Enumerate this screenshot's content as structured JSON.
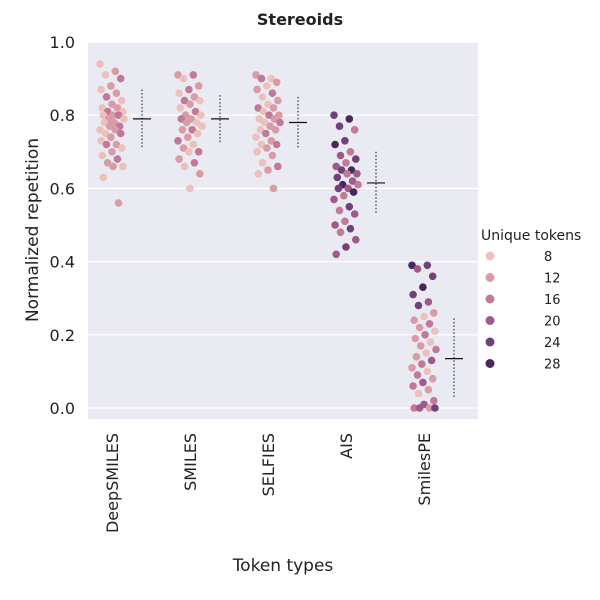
{
  "chart_data": {
    "type": "scatter",
    "title": "Stereoids",
    "xlabel": "Token types",
    "ylabel": "Normalized repetition",
    "categories": [
      "DeepSMILES",
      "SMILES",
      "SELFIES",
      "AIS",
      "SmilesPE"
    ],
    "ylim": [
      -0.03,
      1.0
    ],
    "yticks": [
      "0.0",
      "0.2",
      "0.4",
      "0.6",
      "0.8",
      "1.0"
    ],
    "grid": true,
    "legend": {
      "title": "Unique tokens",
      "placement": "right",
      "entries": [
        {
          "label": "8",
          "color": "#ecc0bb"
        },
        {
          "label": "12",
          "color": "#d99ba6"
        },
        {
          "label": "16",
          "color": "#c07a98"
        },
        {
          "label": "20",
          "color": "#9f5a8b"
        },
        {
          "label": "24",
          "color": "#72407a"
        },
        {
          "label": "28",
          "color": "#48285a"
        }
      ]
    },
    "summary": [
      {
        "category": "DeepSMILES",
        "mean": 0.79,
        "std": 0.08
      },
      {
        "category": "SMILES",
        "mean": 0.79,
        "std": 0.065
      },
      {
        "category": "SELFIES",
        "mean": 0.78,
        "std": 0.07
      },
      {
        "category": "AIS",
        "mean": 0.615,
        "std": 0.085
      },
      {
        "category": "SmilesPE",
        "mean": 0.135,
        "std": 0.11
      }
    ],
    "points": {
      "DeepSMILES": [
        [
          0.94,
          8
        ],
        [
          0.92,
          12
        ],
        [
          0.91,
          8
        ],
        [
          0.9,
          16
        ],
        [
          0.88,
          12
        ],
        [
          0.87,
          8
        ],
        [
          0.86,
          12
        ],
        [
          0.85,
          16
        ],
        [
          0.84,
          8
        ],
        [
          0.83,
          12
        ],
        [
          0.82,
          8
        ],
        [
          0.82,
          12
        ],
        [
          0.81,
          16
        ],
        [
          0.81,
          8
        ],
        [
          0.8,
          12
        ],
        [
          0.8,
          8
        ],
        [
          0.8,
          16
        ],
        [
          0.79,
          12
        ],
        [
          0.79,
          8
        ],
        [
          0.78,
          12
        ],
        [
          0.78,
          8
        ],
        [
          0.77,
          16
        ],
        [
          0.77,
          12
        ],
        [
          0.76,
          8
        ],
        [
          0.76,
          12
        ],
        [
          0.75,
          8
        ],
        [
          0.75,
          16
        ],
        [
          0.74,
          12
        ],
        [
          0.73,
          8
        ],
        [
          0.72,
          12
        ],
        [
          0.72,
          16
        ],
        [
          0.71,
          8
        ],
        [
          0.7,
          12
        ],
        [
          0.69,
          8
        ],
        [
          0.68,
          16
        ],
        [
          0.67,
          12
        ],
        [
          0.66,
          8
        ],
        [
          0.66,
          12
        ],
        [
          0.63,
          8
        ],
        [
          0.56,
          12
        ]
      ],
      "SMILES": [
        [
          0.91,
          12
        ],
        [
          0.91,
          16
        ],
        [
          0.9,
          8
        ],
        [
          0.88,
          12
        ],
        [
          0.87,
          16
        ],
        [
          0.86,
          8
        ],
        [
          0.85,
          12
        ],
        [
          0.84,
          16
        ],
        [
          0.84,
          8
        ],
        [
          0.83,
          12
        ],
        [
          0.82,
          8
        ],
        [
          0.81,
          16
        ],
        [
          0.8,
          12
        ],
        [
          0.8,
          8
        ],
        [
          0.79,
          12
        ],
        [
          0.79,
          16
        ],
        [
          0.78,
          8
        ],
        [
          0.78,
          12
        ],
        [
          0.77,
          8
        ],
        [
          0.76,
          16
        ],
        [
          0.76,
          12
        ],
        [
          0.75,
          8
        ],
        [
          0.74,
          12
        ],
        [
          0.73,
          16
        ],
        [
          0.72,
          8
        ],
        [
          0.71,
          12
        ],
        [
          0.7,
          16
        ],
        [
          0.7,
          8
        ],
        [
          0.68,
          12
        ],
        [
          0.67,
          16
        ],
        [
          0.66,
          8
        ],
        [
          0.64,
          12
        ],
        [
          0.6,
          8
        ]
      ],
      "SELFIES": [
        [
          0.91,
          12
        ],
        [
          0.9,
          8
        ],
        [
          0.9,
          16
        ],
        [
          0.89,
          12
        ],
        [
          0.88,
          8
        ],
        [
          0.87,
          12
        ],
        [
          0.86,
          16
        ],
        [
          0.85,
          8
        ],
        [
          0.84,
          12
        ],
        [
          0.83,
          8
        ],
        [
          0.82,
          16
        ],
        [
          0.82,
          12
        ],
        [
          0.81,
          8
        ],
        [
          0.8,
          12
        ],
        [
          0.8,
          16
        ],
        [
          0.79,
          8
        ],
        [
          0.79,
          12
        ],
        [
          0.78,
          8
        ],
        [
          0.78,
          16
        ],
        [
          0.77,
          12
        ],
        [
          0.76,
          8
        ],
        [
          0.76,
          12
        ],
        [
          0.75,
          16
        ],
        [
          0.74,
          8
        ],
        [
          0.73,
          12
        ],
        [
          0.72,
          8
        ],
        [
          0.72,
          16
        ],
        [
          0.71,
          12
        ],
        [
          0.7,
          8
        ],
        [
          0.69,
          12
        ],
        [
          0.67,
          8
        ],
        [
          0.66,
          16
        ],
        [
          0.65,
          12
        ],
        [
          0.64,
          8
        ],
        [
          0.6,
          12
        ]
      ],
      "AIS": [
        [
          0.8,
          24
        ],
        [
          0.79,
          28
        ],
        [
          0.77,
          24
        ],
        [
          0.76,
          16
        ],
        [
          0.73,
          24
        ],
        [
          0.72,
          28
        ],
        [
          0.7,
          16
        ],
        [
          0.69,
          20
        ],
        [
          0.68,
          24
        ],
        [
          0.67,
          16
        ],
        [
          0.66,
          20
        ],
        [
          0.65,
          28
        ],
        [
          0.65,
          24
        ],
        [
          0.64,
          20
        ],
        [
          0.64,
          16
        ],
        [
          0.63,
          24
        ],
        [
          0.62,
          20
        ],
        [
          0.61,
          28
        ],
        [
          0.61,
          16
        ],
        [
          0.6,
          20
        ],
        [
          0.6,
          24
        ],
        [
          0.59,
          28
        ],
        [
          0.58,
          16
        ],
        [
          0.57,
          20
        ],
        [
          0.55,
          24
        ],
        [
          0.54,
          16
        ],
        [
          0.53,
          20
        ],
        [
          0.51,
          16
        ],
        [
          0.5,
          20
        ],
        [
          0.49,
          24
        ],
        [
          0.48,
          16
        ],
        [
          0.46,
          20
        ],
        [
          0.44,
          24
        ],
        [
          0.42,
          20
        ]
      ],
      "SmilesPE": [
        [
          0.39,
          28
        ],
        [
          0.39,
          24
        ],
        [
          0.38,
          20
        ],
        [
          0.36,
          24
        ],
        [
          0.33,
          28
        ],
        [
          0.31,
          24
        ],
        [
          0.29,
          20
        ],
        [
          0.28,
          24
        ],
        [
          0.26,
          12
        ],
        [
          0.25,
          8
        ],
        [
          0.24,
          12
        ],
        [
          0.23,
          16
        ],
        [
          0.22,
          12
        ],
        [
          0.21,
          8
        ],
        [
          0.2,
          16
        ],
        [
          0.19,
          12
        ],
        [
          0.18,
          8
        ],
        [
          0.17,
          12
        ],
        [
          0.16,
          16
        ],
        [
          0.15,
          8
        ],
        [
          0.14,
          12
        ],
        [
          0.13,
          20
        ],
        [
          0.12,
          16
        ],
        [
          0.11,
          12
        ],
        [
          0.1,
          8
        ],
        [
          0.09,
          16
        ],
        [
          0.08,
          12
        ],
        [
          0.07,
          20
        ],
        [
          0.06,
          16
        ],
        [
          0.05,
          12
        ],
        [
          0.04,
          8
        ],
        [
          0.02,
          16
        ],
        [
          0.01,
          20
        ],
        [
          0.0,
          16
        ],
        [
          0.0,
          12
        ],
        [
          0.0,
          20
        ],
        [
          0.0,
          24
        ]
      ]
    }
  }
}
